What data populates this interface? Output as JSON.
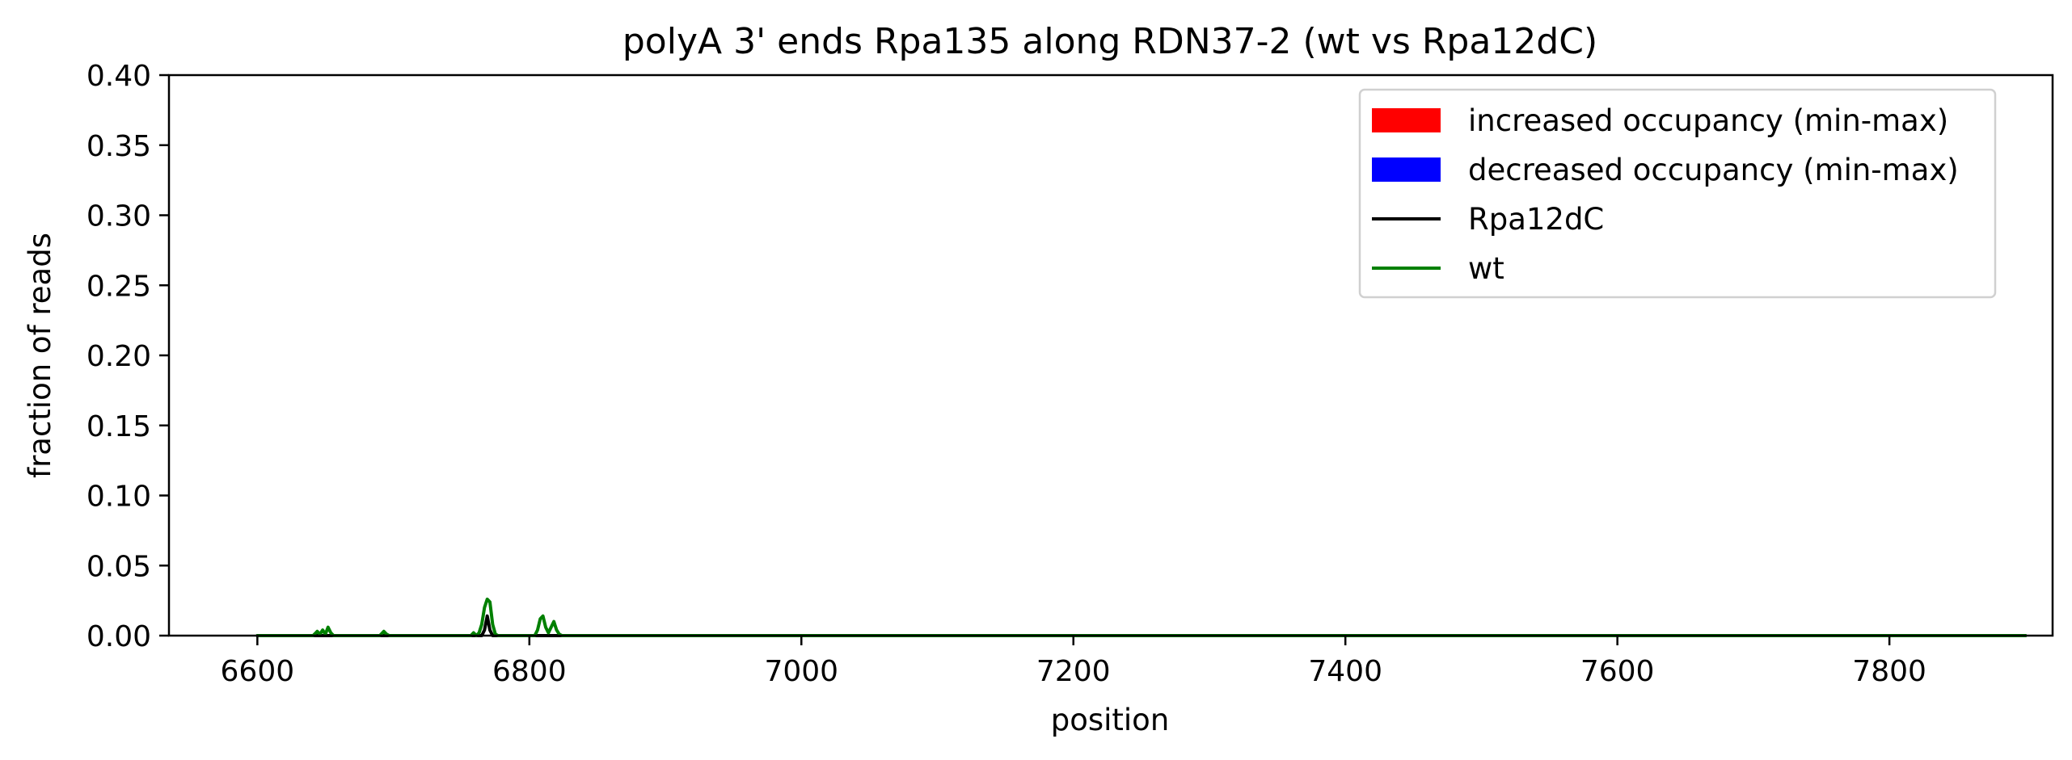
{
  "chart_data": {
    "type": "line",
    "title": "polyA 3' ends Rpa135 along RDN37-2 (wt vs Rpa12dC)",
    "xlabel": "position",
    "ylabel": "fraction of reads",
    "xlim": [
      6535,
      7920
    ],
    "ylim": [
      0,
      0.4
    ],
    "xticks": [
      {
        "value": 6600,
        "label": "6600"
      },
      {
        "value": 6800,
        "label": "6800"
      },
      {
        "value": 7000,
        "label": "7000"
      },
      {
        "value": 7200,
        "label": "7200"
      },
      {
        "value": 7400,
        "label": "7400"
      },
      {
        "value": 7600,
        "label": "7600"
      },
      {
        "value": 7800,
        "label": "7800"
      }
    ],
    "yticks": [
      {
        "value": 0.0,
        "label": "0.00"
      },
      {
        "value": 0.05,
        "label": "0.05"
      },
      {
        "value": 0.1,
        "label": "0.10"
      },
      {
        "value": 0.15,
        "label": "0.15"
      },
      {
        "value": 0.2,
        "label": "0.20"
      },
      {
        "value": 0.25,
        "label": "0.25"
      },
      {
        "value": 0.3,
        "label": "0.30"
      },
      {
        "value": 0.35,
        "label": "0.35"
      },
      {
        "value": 0.4,
        "label": "0.40"
      }
    ],
    "grid": false,
    "legend_position": "top-right",
    "legend": [
      {
        "label": "increased occupancy (min-max)",
        "kind": "patch",
        "color": "#ff0000"
      },
      {
        "label": "decreased occupancy (min-max)",
        "kind": "patch",
        "color": "#0000ff"
      },
      {
        "label": "Rpa12dC",
        "kind": "line",
        "color": "#000000"
      },
      {
        "label": "wt",
        "kind": "line",
        "color": "#008000"
      }
    ],
    "series": [
      {
        "name": "Rpa12dC",
        "color": "#000000",
        "x": [
          6600,
          6765,
          6767,
          6769,
          6771,
          6773,
          7900
        ],
        "y": [
          0,
          0,
          0.004,
          0.014,
          0.004,
          0,
          0
        ]
      },
      {
        "name": "wt",
        "color": "#008000",
        "x": [
          6600,
          6641,
          6644,
          6646,
          6648,
          6650,
          6652,
          6654,
          6656,
          6690,
          6693,
          6695,
          6697,
          6757,
          6759,
          6761,
          6763,
          6765,
          6767,
          6769,
          6771,
          6773,
          6775,
          6777,
          6804,
          6806,
          6808,
          6810,
          6812,
          6814,
          6816,
          6818,
          6820,
          6822,
          6824,
          7900
        ],
        "y": [
          0,
          0,
          0.003,
          0.001,
          0.004,
          0.001,
          0.006,
          0.002,
          0,
          0,
          0.003,
          0.001,
          0,
          0,
          0.002,
          0,
          0.002,
          0.008,
          0.02,
          0.026,
          0.024,
          0.008,
          0.001,
          0,
          0,
          0.004,
          0.012,
          0.014,
          0.006,
          0.002,
          0.006,
          0.01,
          0.004,
          0.001,
          0,
          0
        ]
      }
    ]
  }
}
